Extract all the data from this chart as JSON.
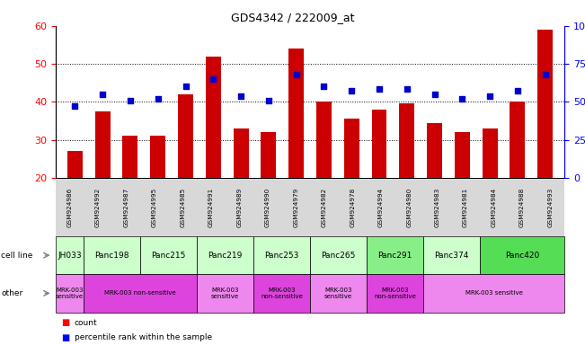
{
  "title": "GDS4342 / 222009_at",
  "samples": [
    "GSM924986",
    "GSM924992",
    "GSM924987",
    "GSM924995",
    "GSM924985",
    "GSM924991",
    "GSM924989",
    "GSM924990",
    "GSM924979",
    "GSM924982",
    "GSM924978",
    "GSM924994",
    "GSM924980",
    "GSM924983",
    "GSM924981",
    "GSM924984",
    "GSM924988",
    "GSM924993"
  ],
  "counts": [
    27,
    37.5,
    31,
    31,
    42,
    52,
    33,
    32,
    54,
    40,
    35.5,
    38,
    39.5,
    34.5,
    32,
    33,
    40,
    59
  ],
  "percentiles_right": [
    47.5,
    55,
    51,
    52,
    60,
    65,
    54,
    51,
    68,
    60,
    57,
    58.5,
    58.5,
    55,
    52,
    54,
    57,
    68
  ],
  "cell_lines": [
    {
      "name": "JH033",
      "start": 0,
      "end": 1,
      "color": "#ccffcc"
    },
    {
      "name": "Panc198",
      "start": 1,
      "end": 3,
      "color": "#ccffcc"
    },
    {
      "name": "Panc215",
      "start": 3,
      "end": 5,
      "color": "#ccffcc"
    },
    {
      "name": "Panc219",
      "start": 5,
      "end": 7,
      "color": "#ccffcc"
    },
    {
      "name": "Panc253",
      "start": 7,
      "end": 9,
      "color": "#ccffcc"
    },
    {
      "name": "Panc265",
      "start": 9,
      "end": 11,
      "color": "#ccffcc"
    },
    {
      "name": "Panc291",
      "start": 11,
      "end": 13,
      "color": "#88ee88"
    },
    {
      "name": "Panc374",
      "start": 13,
      "end": 15,
      "color": "#ccffcc"
    },
    {
      "name": "Panc420",
      "start": 15,
      "end": 18,
      "color": "#55dd55"
    }
  ],
  "other_labels": [
    {
      "text": "MRK-003\nsensitive",
      "start": 0,
      "end": 1,
      "color": "#ee88ee"
    },
    {
      "text": "MRK-003 non-sensitive",
      "start": 1,
      "end": 5,
      "color": "#dd44dd"
    },
    {
      "text": "MRK-003\nsensitive",
      "start": 5,
      "end": 7,
      "color": "#ee88ee"
    },
    {
      "text": "MRK-003\nnon-sensitive",
      "start": 7,
      "end": 9,
      "color": "#dd44dd"
    },
    {
      "text": "MRK-003\nsensitive",
      "start": 9,
      "end": 11,
      "color": "#ee88ee"
    },
    {
      "text": "MRK-003\nnon-sensitive",
      "start": 11,
      "end": 13,
      "color": "#dd44dd"
    },
    {
      "text": "MRK-003 sensitive",
      "start": 13,
      "end": 18,
      "color": "#ee88ee"
    }
  ],
  "ylim_left": [
    20,
    60
  ],
  "ylim_right": [
    0,
    100
  ],
  "yticks_left": [
    20,
    30,
    40,
    50,
    60
  ],
  "yticks_right": [
    0,
    25,
    50,
    75,
    100
  ],
  "bar_color": "#cc0000",
  "dot_color": "#0000cc",
  "bar_bottom": 20,
  "bg_color_samples": "#d8d8d8",
  "legend_count": "count",
  "legend_pct": "percentile rank within the sample"
}
